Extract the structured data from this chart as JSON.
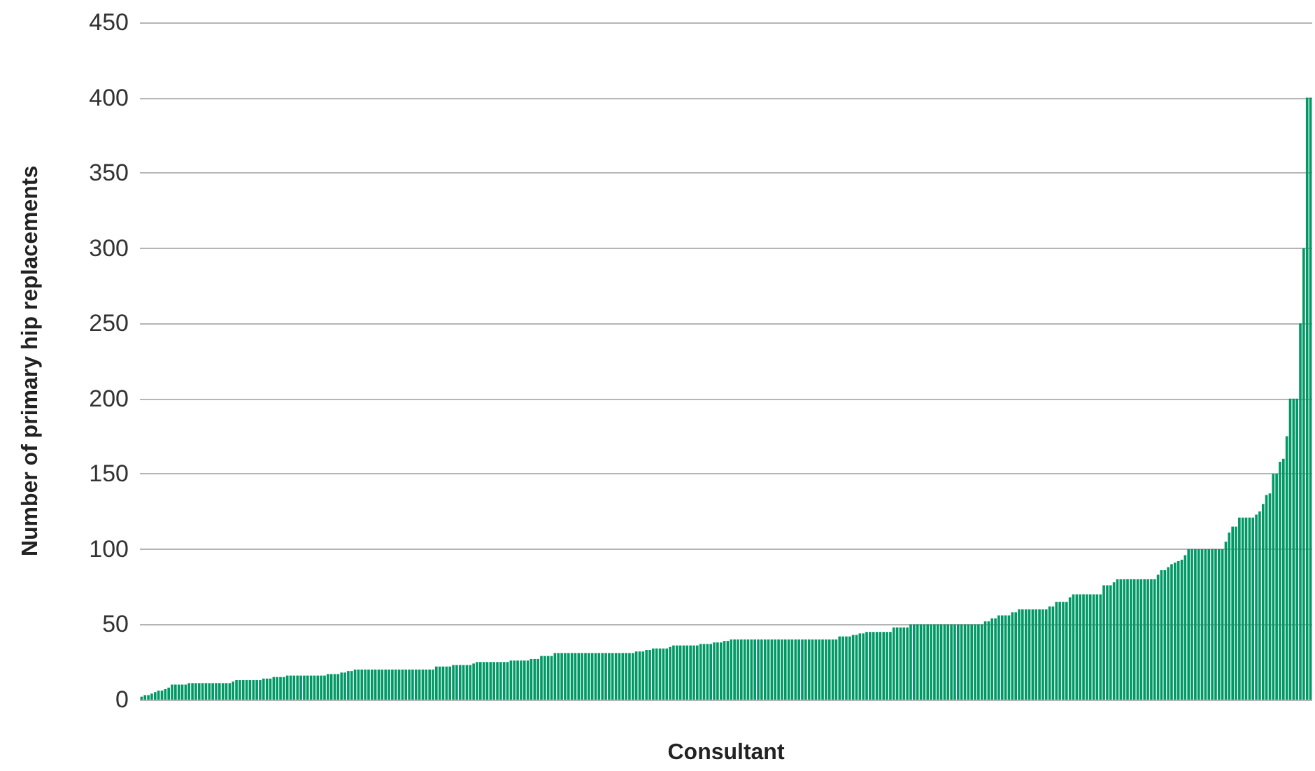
{
  "chart_data": {
    "type": "bar",
    "xlabel": "Consultant",
    "ylabel": "Number of primary hip replacements",
    "categories": [
      null,
      null,
      null,
      null,
      null,
      null,
      null,
      null,
      null,
      null,
      null,
      null,
      null,
      null,
      null,
      null,
      null,
      null,
      null,
      null,
      null,
      null,
      null,
      null,
      null,
      null,
      null,
      null,
      null,
      null,
      null,
      null,
      null,
      null,
      null,
      null,
      null,
      null,
      null,
      null,
      null,
      null,
      null,
      null,
      null,
      null,
      null,
      null,
      null,
      null,
      null,
      null,
      null,
      null,
      null,
      null,
      null,
      null,
      null,
      null,
      null,
      null,
      null,
      null,
      null,
      null,
      null,
      null,
      null,
      null,
      null,
      null,
      null,
      null,
      null,
      null,
      null,
      null,
      null,
      null,
      null,
      null,
      null,
      null,
      null,
      null,
      null,
      null,
      null,
      null,
      null,
      null,
      null,
      null,
      null,
      null,
      null,
      null,
      null,
      null,
      null,
      null,
      null,
      null,
      null,
      null,
      null,
      null,
      null,
      null,
      null,
      null,
      null,
      null,
      null,
      null,
      null,
      null,
      null,
      null,
      null,
      null,
      null,
      null,
      null,
      null,
      null,
      null,
      null,
      null,
      null,
      null,
      null,
      null,
      null,
      null,
      null,
      null,
      null,
      null,
      null,
      null,
      null,
      null,
      null,
      null,
      null,
      null,
      null,
      null,
      null,
      null,
      null,
      null,
      null,
      null,
      null,
      null,
      null,
      null,
      null,
      null,
      null,
      null,
      null,
      null,
      null,
      null,
      null,
      null,
      null,
      null,
      null,
      null,
      null,
      null,
      null,
      null,
      null,
      null,
      null,
      null,
      null,
      null,
      null,
      null,
      null,
      null,
      null,
      null,
      null,
      null,
      null,
      null,
      null,
      null,
      null,
      null,
      null,
      null,
      null,
      null,
      null,
      null,
      null,
      null,
      null,
      null,
      null,
      null,
      null,
      null,
      null,
      null,
      null,
      null,
      null,
      null,
      null,
      null,
      null,
      null,
      null,
      null,
      null,
      null,
      null,
      null,
      null,
      null,
      null,
      null,
      null,
      null,
      null,
      null,
      null,
      null,
      null,
      null,
      null,
      null,
      null,
      null,
      null,
      null,
      null,
      null,
      null,
      null,
      null,
      null,
      null,
      null,
      null,
      null,
      null,
      null,
      null,
      null,
      null,
      null,
      null,
      null,
      null,
      null,
      null,
      null,
      null,
      null,
      null,
      null,
      null,
      null,
      null,
      null,
      null,
      null,
      null,
      null,
      null,
      null,
      null,
      null,
      null,
      null,
      null,
      null,
      null,
      null,
      null,
      null,
      null,
      null,
      null,
      null,
      null,
      null,
      null,
      null,
      null,
      null,
      null,
      null,
      null,
      null,
      null,
      null,
      null,
      null,
      null,
      null,
      null,
      null,
      null,
      null,
      null,
      null,
      null,
      null,
      null,
      null,
      null,
      null,
      null,
      null,
      null,
      null,
      null,
      null,
      null,
      null,
      null,
      null,
      null,
      null,
      null,
      null,
      null,
      null,
      null,
      null,
      null,
      null,
      null,
      null
    ],
    "values": [
      2,
      3,
      3,
      4,
      5,
      6,
      6,
      7,
      8,
      10,
      10,
      10,
      10,
      10,
      11,
      11,
      11,
      11,
      11,
      11,
      11,
      11,
      11,
      11,
      11,
      11,
      11,
      12,
      13,
      13,
      13,
      13,
      13,
      13,
      13,
      13,
      14,
      14,
      14,
      15,
      15,
      15,
      15,
      16,
      16,
      16,
      16,
      16,
      16,
      16,
      16,
      16,
      16,
      16,
      16,
      17,
      17,
      17,
      17,
      18,
      18,
      19,
      19,
      20,
      20,
      20,
      20,
      20,
      20,
      20,
      20,
      20,
      20,
      20,
      20,
      20,
      20,
      20,
      20,
      20,
      20,
      20,
      20,
      20,
      20,
      20,
      20,
      22,
      22,
      22,
      22,
      22,
      23,
      23,
      23,
      23,
      23,
      23,
      24,
      25,
      25,
      25,
      25,
      25,
      25,
      25,
      25,
      25,
      25,
      26,
      26,
      26,
      26,
      26,
      26,
      27,
      27,
      27,
      29,
      29,
      29,
      29,
      31,
      31,
      31,
      31,
      31,
      31,
      31,
      31,
      31,
      31,
      31,
      31,
      31,
      31,
      31,
      31,
      31,
      31,
      31,
      31,
      31,
      31,
      31,
      31,
      32,
      32,
      32,
      33,
      33,
      34,
      34,
      34,
      34,
      34,
      35,
      36,
      36,
      36,
      36,
      36,
      36,
      36,
      36,
      37,
      37,
      37,
      37,
      38,
      38,
      38,
      39,
      39,
      40,
      40,
      40,
      40,
      40,
      40,
      40,
      40,
      40,
      40,
      40,
      40,
      40,
      40,
      40,
      40,
      40,
      40,
      40,
      40,
      40,
      40,
      40,
      40,
      40,
      40,
      40,
      40,
      40,
      40,
      40,
      40,
      42,
      42,
      42,
      42,
      43,
      43,
      44,
      44,
      45,
      45,
      45,
      45,
      45,
      45,
      45,
      45,
      48,
      48,
      48,
      48,
      48,
      50,
      50,
      50,
      50,
      50,
      50,
      50,
      50,
      50,
      50,
      50,
      50,
      50,
      50,
      50,
      50,
      50,
      50,
      50,
      50,
      50,
      50,
      52,
      52,
      54,
      54,
      56,
      56,
      56,
      56,
      58,
      58,
      60,
      60,
      60,
      60,
      60,
      60,
      60,
      60,
      60,
      62,
      62,
      65,
      65,
      65,
      65,
      68,
      70,
      70,
      70,
      70,
      70,
      70,
      70,
      70,
      70,
      76,
      76,
      76,
      78,
      80,
      80,
      80,
      80,
      80,
      80,
      80,
      80,
      80,
      80,
      80,
      80,
      83,
      86,
      86,
      88,
      90,
      91,
      92,
      93,
      96,
      100,
      100,
      100,
      100,
      100,
      100,
      100,
      100,
      100,
      100,
      100,
      105,
      111,
      115,
      115,
      121,
      121,
      121,
      121,
      121,
      123,
      125,
      130,
      136,
      137,
      150,
      150,
      158,
      160,
      175,
      200,
      200,
      200,
      250,
      300,
      400,
      400
    ],
    "color": "#009966",
    "ylim": [
      0,
      450
    ],
    "yticks": [
      0,
      50,
      100,
      150,
      200,
      250,
      300,
      350,
      400,
      450
    ],
    "grid": "y"
  }
}
